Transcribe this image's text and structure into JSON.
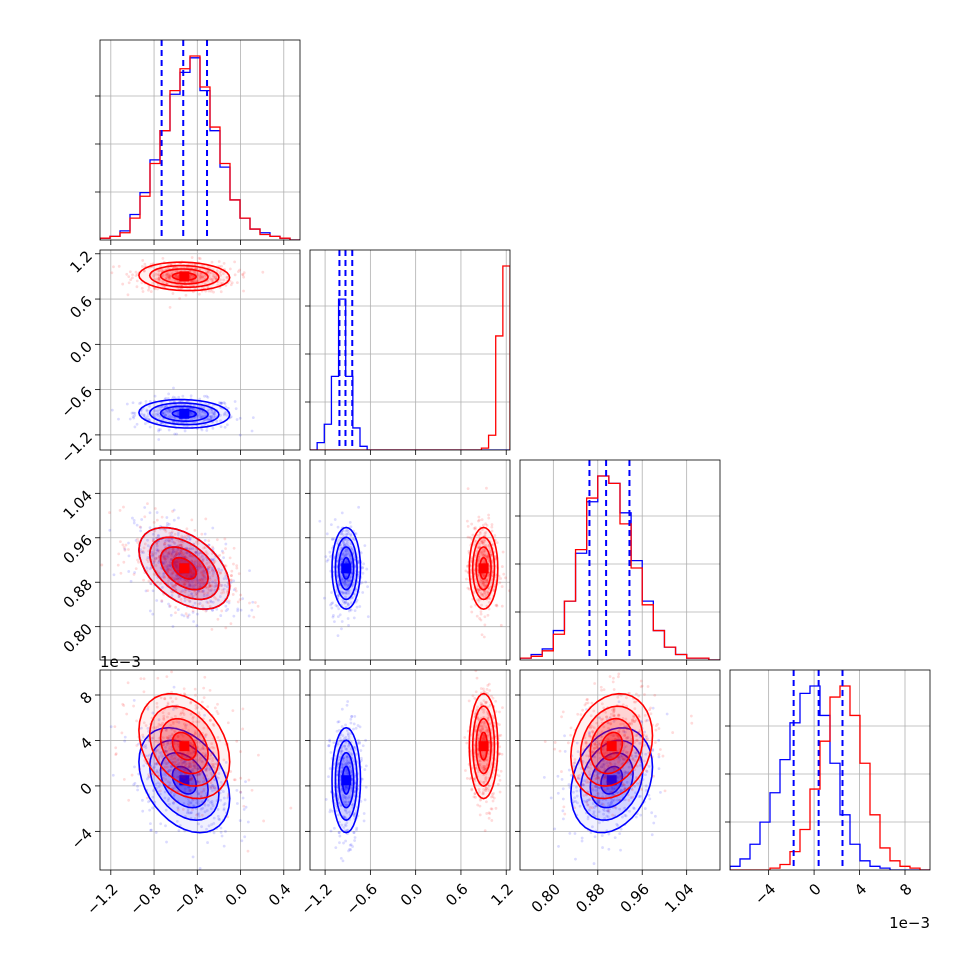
{
  "colors": {
    "series_a": "#0000ff",
    "series_b": "#ff0000",
    "grid": "#b0b0b0",
    "axes": "#000000"
  },
  "chart_data": {
    "type": "corner",
    "grid": true,
    "series": [
      {
        "name": "",
        "color": "#0000ff",
        "means": [
          -0.52,
          -0.92,
          0.905,
          0.0005
        ],
        "sds": [
          0.2,
          0.09,
          0.035,
          0.0022
        ],
        "corr": {
          "p1_0": -0.08,
          "p2_0": -0.45,
          "p2_1": 0.0,
          "p3_0": -0.35,
          "p3_1": 0.0,
          "p3_2": 0.25
        }
      },
      {
        "name": "",
        "color": "#ff0000",
        "means": [
          -0.52,
          0.9,
          0.905,
          0.0035
        ],
        "sds": [
          0.2,
          0.09,
          0.035,
          0.0022
        ],
        "corr": {
          "p1_0": -0.08,
          "p2_0": -0.45,
          "p2_1": 0.0,
          "p3_0": -0.3,
          "p3_1": 0.0,
          "p3_2": 0.2
        }
      }
    ],
    "axes": [
      {
        "range": [
          -1.3,
          0.55
        ],
        "ticks": [
          -1.2,
          -0.8,
          -0.4,
          0.0,
          0.4
        ],
        "tick_labels": [
          "−1.2",
          "−0.8",
          "−0.4",
          "0.0",
          "0.4"
        ],
        "exponent_label": ""
      },
      {
        "range": [
          -1.4,
          1.25
        ],
        "ticks": [
          -1.2,
          -0.6,
          0.0,
          0.6,
          1.2
        ],
        "tick_labels": [
          "−1.2",
          "−0.6",
          "0.0",
          "0.6",
          "1.2"
        ],
        "exponent_label": ""
      },
      {
        "range": [
          0.74,
          1.1
        ],
        "ticks": [
          0.8,
          0.88,
          0.96,
          1.04
        ],
        "tick_labels": [
          "0.80",
          "0.88",
          "0.96",
          "1.04"
        ],
        "exponent_label": ""
      },
      {
        "range": [
          -0.0074,
          0.0102
        ],
        "ticks": [
          -0.004,
          0.0,
          0.004,
          0.008
        ],
        "tick_labels": [
          "−4",
          "0",
          "4",
          "8"
        ],
        "exponent_label": "1e−3"
      }
    ],
    "quantile_lines": [
      [
        -0.73,
        -0.53,
        -0.31
      ],
      [
        -1.01,
        -0.93,
        -0.84
      ],
      [
        0.865,
        0.895,
        0.937
      ],
      [
        -0.0018,
        0.0004,
        0.0025
      ]
    ],
    "histograms": [
      {
        "bins": 20,
        "series_a": [
          1,
          2,
          5,
          14,
          26,
          44,
          60,
          80,
          92,
          100,
          82,
          60,
          40,
          22,
          12,
          6,
          4,
          2,
          1,
          0
        ],
        "series_b": [
          1,
          2,
          4,
          12,
          24,
          42,
          60,
          82,
          94,
          101,
          84,
          62,
          42,
          22,
          12,
          6,
          3,
          2,
          1,
          0
        ]
      },
      {
        "bins": 28,
        "series_a": [
          0,
          4,
          14,
          40,
          82,
          40,
          12,
          2,
          0,
          0,
          0,
          0,
          0,
          0,
          0,
          0,
          0,
          0,
          0,
          0,
          0,
          0,
          0,
          0,
          0,
          0,
          0,
          0
        ],
        "series_b": [
          0,
          0,
          0,
          0,
          0,
          0,
          0,
          0,
          0,
          0,
          0,
          0,
          0,
          0,
          0,
          0,
          0,
          0,
          0,
          0,
          0,
          0,
          0,
          0,
          1,
          8,
          62,
          100
        ]
      },
      {
        "bins": 18,
        "series_a": [
          1,
          3,
          6,
          16,
          32,
          58,
          86,
          100,
          96,
          80,
          54,
          32,
          16,
          7,
          3,
          1,
          1,
          0
        ],
        "series_b": [
          1,
          2,
          5,
          14,
          32,
          60,
          88,
          100,
          96,
          74,
          50,
          30,
          16,
          7,
          3,
          1,
          1,
          0
        ]
      },
      {
        "bins": 20,
        "series_a": [
          2,
          6,
          14,
          26,
          42,
          60,
          80,
          96,
          100,
          84,
          58,
          30,
          14,
          5,
          2,
          1,
          0,
          0,
          0,
          0
        ],
        "series_b": [
          0,
          0,
          0,
          0,
          1,
          3,
          10,
          22,
          44,
          70,
          94,
          100,
          84,
          58,
          30,
          12,
          5,
          2,
          1,
          0
        ]
      }
    ]
  }
}
